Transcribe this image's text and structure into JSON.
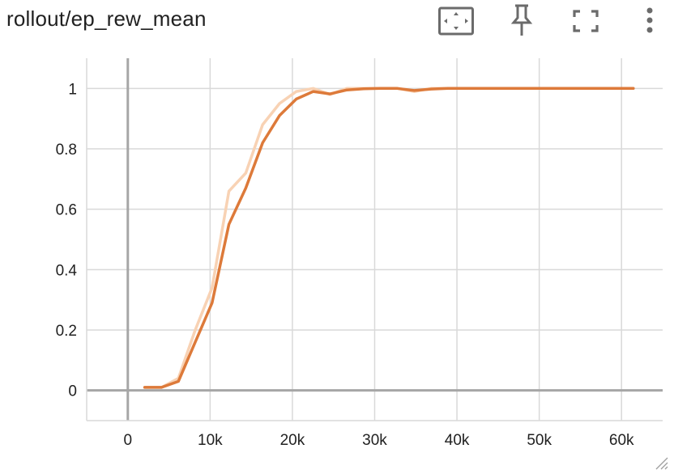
{
  "card": {
    "title": "rollout/ep_rew_mean"
  },
  "toolbar": {
    "icons": [
      "fit-domain-icon",
      "pin-icon",
      "fullscreen-icon",
      "more-vert-icon"
    ]
  },
  "colors": {
    "smoothed": "#dd7a3a",
    "raw": "#f8d2b4",
    "grid": "#d9d9d9",
    "zero_axis": "#a6a6a6",
    "text": "#212121",
    "icon": "#616161"
  },
  "chart_data": {
    "type": "line",
    "title": "rollout/ep_rew_mean",
    "xlabel": "",
    "ylabel": "",
    "xlim": [
      -5000,
      65000
    ],
    "ylim": [
      -0.1,
      1.1
    ],
    "x_ticks": [
      0,
      10000,
      20000,
      30000,
      40000,
      50000,
      60000
    ],
    "x_tick_labels": [
      "0",
      "10k",
      "20k",
      "30k",
      "40k",
      "50k",
      "60k"
    ],
    "y_ticks": [
      0,
      0.2,
      0.4,
      0.6,
      0.8,
      1
    ],
    "y_tick_labels": [
      "0",
      "0.2",
      "0.4",
      "0.6",
      "0.8",
      "1"
    ],
    "grid": true,
    "series": [
      {
        "role": "raw",
        "x": [
          2048,
          4096,
          6144,
          8192,
          10240,
          12288,
          14336,
          16384,
          18432,
          20480,
          22528,
          24576,
          26624,
          28672,
          30720,
          32768,
          34816,
          36864,
          38912,
          40960,
          43008,
          45056,
          47104,
          49152,
          51200,
          53248,
          55296,
          57344,
          59392,
          61440
        ],
        "y": [
          0.01,
          0.01,
          0.04,
          0.2,
          0.34,
          0.66,
          0.72,
          0.88,
          0.95,
          0.99,
          1.0,
          0.98,
          1.0,
          1.0,
          1.0,
          1.0,
          0.99,
          1.0,
          1.0,
          1.0,
          1.0,
          1.0,
          1.0,
          1.0,
          1.0,
          1.0,
          1.0,
          1.0,
          1.0,
          1.0
        ]
      },
      {
        "role": "smoothed",
        "x": [
          2048,
          4096,
          6144,
          8192,
          10240,
          12288,
          14336,
          16384,
          18432,
          20480,
          22528,
          24576,
          26624,
          28672,
          30720,
          32768,
          34816,
          36864,
          38912,
          40960,
          43008,
          45056,
          47104,
          49152,
          51200,
          53248,
          55296,
          57344,
          59392,
          61440
        ],
        "y": [
          0.01,
          0.01,
          0.03,
          0.16,
          0.29,
          0.55,
          0.67,
          0.82,
          0.91,
          0.965,
          0.99,
          0.982,
          0.995,
          0.999,
          1.0,
          1.0,
          0.993,
          0.998,
          1.0,
          1.0,
          1.0,
          1.0,
          1.0,
          1.0,
          1.0,
          1.0,
          1.0,
          1.0,
          1.0,
          1.0
        ]
      }
    ]
  }
}
